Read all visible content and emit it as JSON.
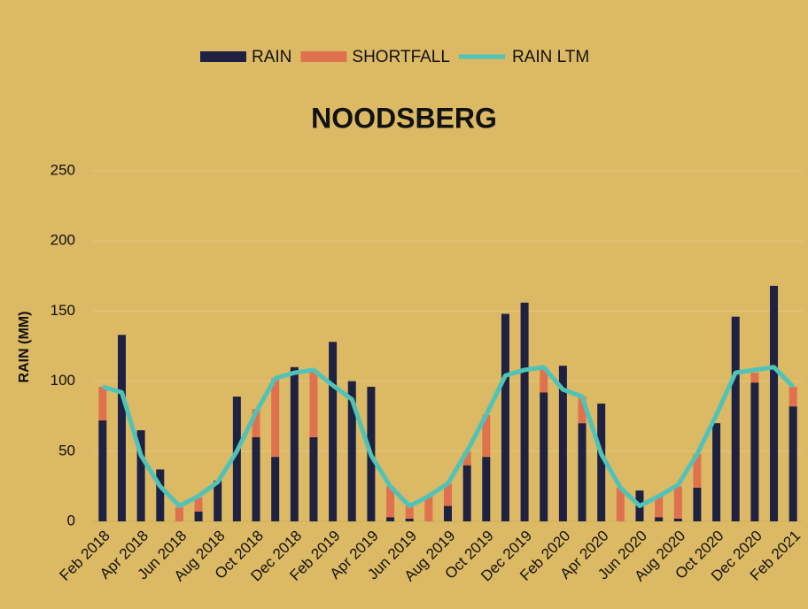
{
  "chart_data": {
    "type": "bar",
    "stacked": true,
    "title": "NOODSBERG",
    "y_label": "RAIN (MM)",
    "categories": [
      "Feb 2018",
      null,
      "Apr 2018",
      null,
      "Jun 2018",
      null,
      "Aug 2018",
      null,
      "Oct 2018",
      null,
      "Dec 2018",
      null,
      "Feb 2019",
      null,
      "Apr 2019",
      null,
      "Jun 2019",
      null,
      "Aug 2019",
      null,
      "Oct 2019",
      null,
      "Dec 2019",
      null,
      "Feb 2020",
      null,
      "Apr 2020",
      null,
      "Jun 2020",
      null,
      "Aug 2020",
      null,
      "Oct 2020",
      null,
      "Dec 2020",
      null,
      "Feb 2021"
    ],
    "series": [
      {
        "name": "RAIN",
        "color": "#1f2142",
        "values": [
          72,
          133,
          65,
          37,
          0,
          7,
          29,
          89,
          60,
          46,
          110,
          60,
          128,
          100,
          96,
          3,
          2,
          0,
          11,
          40,
          46,
          148,
          156,
          92,
          111,
          70,
          84,
          0,
          22,
          3,
          2,
          24,
          70,
          146,
          99,
          168,
          82
        ]
      },
      {
        "name": "SHORTFALL",
        "color": "#e0714f",
        "values": [
          24,
          0,
          0,
          0,
          10,
          10,
          0,
          0,
          20,
          56,
          0,
          48,
          0,
          0,
          0,
          22,
          9,
          18,
          16,
          10,
          30,
          0,
          0,
          18,
          0,
          19,
          0,
          24,
          0,
          15,
          23,
          24,
          0,
          0,
          7,
          0,
          14
        ]
      },
      {
        "name": "RAIN LTM",
        "type": "line",
        "color": "#4fc3b8",
        "values": [
          96,
          92,
          47,
          25,
          11,
          18,
          28,
          50,
          78,
          102,
          106,
          108,
          97,
          87,
          47,
          25,
          11,
          18,
          27,
          50,
          76,
          104,
          108,
          110,
          94,
          89,
          48,
          24,
          11,
          18,
          26,
          48,
          76,
          106,
          108,
          110,
          96
        ]
      }
    ],
    "ylim": [
      0,
      250
    ],
    "yticks": [
      0,
      50,
      100,
      150,
      200,
      250
    ],
    "grid": true,
    "legend": "top"
  }
}
